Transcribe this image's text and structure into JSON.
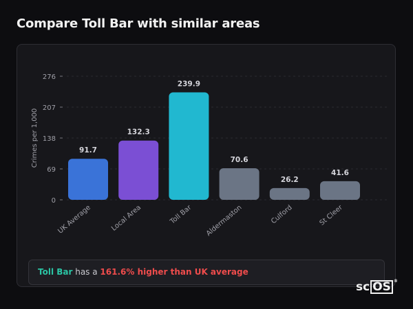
{
  "header": {
    "title": "Compare Toll Bar with similar areas"
  },
  "colors": {
    "uk_average": "#3a73d8",
    "local_area": "#7b4fd4",
    "toll_bar": "#21b8d0",
    "similar": "#6b7585",
    "highlight_area": "#2bc4a4",
    "highlight_diff": "#ef4c4c"
  },
  "chart_data": {
    "type": "bar",
    "ylabel": "Crimes per 1,000",
    "xlabel": "",
    "ylim": [
      0,
      276
    ],
    "yticks": [
      0,
      69,
      138,
      207,
      276
    ],
    "grid": true,
    "categories": [
      "UK Average",
      "Local Area",
      "Toll Bar",
      "Aldermaston",
      "Culford",
      "St Cleer"
    ],
    "values": [
      91.7,
      132.3,
      239.9,
      70.6,
      26.2,
      41.6
    ],
    "value_labels": [
      "91.7",
      "132.3",
      "239.9",
      "70.6",
      "26.2",
      "41.6"
    ],
    "bar_colors": [
      "#3a73d8",
      "#7b4fd4",
      "#21b8d0",
      "#6b7585",
      "#6b7585",
      "#6b7585"
    ]
  },
  "summary": {
    "area_name": "Toll Bar",
    "connector": " has a ",
    "difference_text": "161.6% higher than UK average"
  },
  "logo": {
    "prefix": "sc",
    "boxed": "OS",
    "mark": "®"
  }
}
